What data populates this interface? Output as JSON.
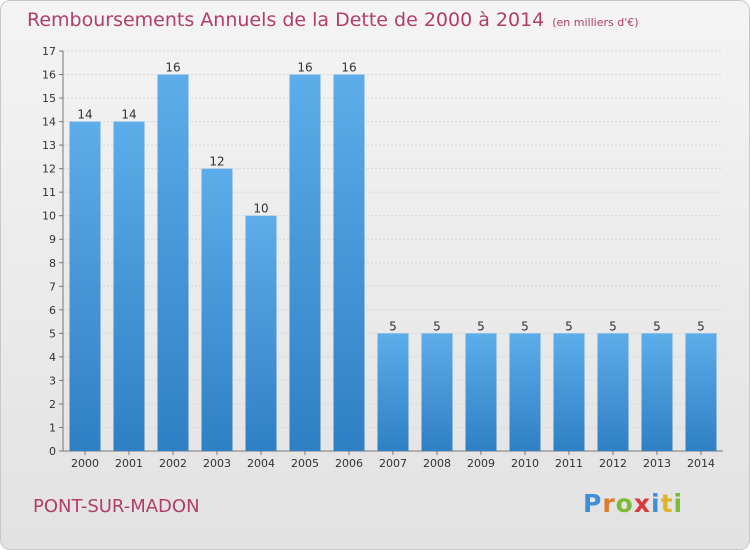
{
  "header": {
    "title": "Remboursements Annuels de la Dette de 2000 à 2014",
    "subtitle": "(en milliers d'€)"
  },
  "footer": {
    "commune": "PONT-SUR-MADON",
    "logo": "Proxiti"
  },
  "colors": {
    "accent": "#b23d6a",
    "bar_top": "#5dadea",
    "bar_bottom": "#2f7fc4"
  },
  "chart_data": {
    "type": "bar",
    "title": "Remboursements Annuels de la Dette de 2000 à 2014",
    "subtitle": "(en milliers d'€)",
    "categories": [
      "2000",
      "2001",
      "2002",
      "2003",
      "2004",
      "2005",
      "2006",
      "2007",
      "2008",
      "2009",
      "2010",
      "2011",
      "2012",
      "2013",
      "2014"
    ],
    "values": [
      14,
      14,
      16,
      12,
      10,
      16,
      16,
      5,
      5,
      5,
      5,
      5,
      5,
      5,
      5
    ],
    "ylim": [
      0,
      17
    ],
    "yticks": [
      "0",
      "1",
      "2",
      "3",
      "4",
      "5",
      "6",
      "7",
      "8",
      "9",
      "10",
      "11",
      "12",
      "13",
      "14",
      "15",
      "16",
      "17"
    ],
    "grid": true,
    "legend": "none"
  }
}
